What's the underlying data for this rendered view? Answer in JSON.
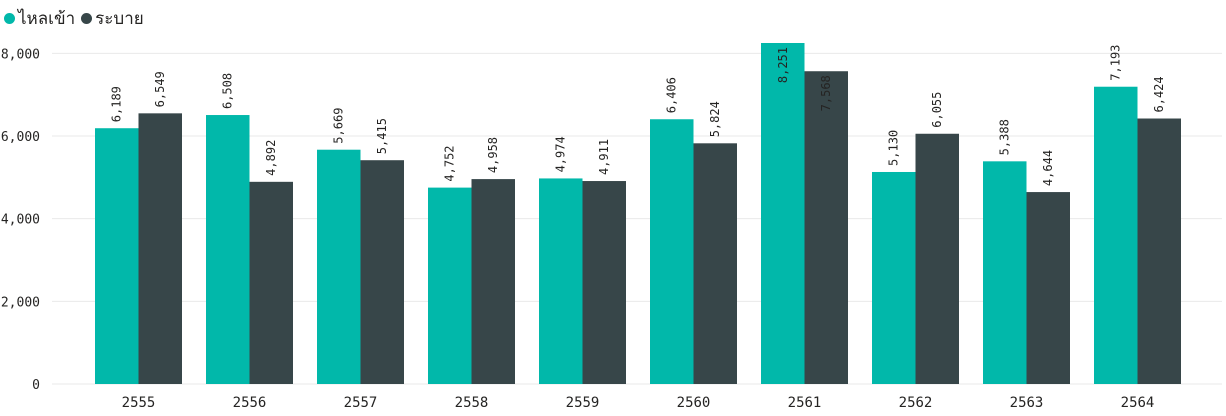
{
  "legend": {
    "inflow_label": "ไหลเข้า",
    "outflow_label": "ระบาย"
  },
  "colors": {
    "inflow": "#01b8aa",
    "outflow": "#374649",
    "grid": "#e9e9e9"
  },
  "chart_data": {
    "type": "bar",
    "categories": [
      "2555",
      "2556",
      "2557",
      "2558",
      "2559",
      "2560",
      "2561",
      "2562",
      "2563",
      "2564"
    ],
    "series": [
      {
        "name": "ไหลเข้า",
        "values": [
          6189,
          6508,
          5669,
          4752,
          4974,
          6406,
          8251,
          5130,
          5388,
          7193
        ]
      },
      {
        "name": "ระบาย",
        "values": [
          6549,
          4892,
          5415,
          4958,
          4911,
          5824,
          7568,
          6055,
          4644,
          6424
        ]
      }
    ],
    "value_labels": [
      [
        "6,189",
        "6,508",
        "5,669",
        "4,752",
        "4,974",
        "6,406",
        "8,251",
        "5,130",
        "5,388",
        "7,193"
      ],
      [
        "6,549",
        "4,892",
        "5,415",
        "4,958",
        "4,911",
        "5,824",
        "7,568",
        "6,055",
        "4,644",
        "6,424"
      ]
    ],
    "y_ticks": [
      0,
      2000,
      4000,
      6000,
      8000
    ],
    "y_tick_labels": [
      "0",
      "2,000",
      "4,000",
      "6,000",
      "8,000"
    ],
    "ylim": [
      0,
      8251
    ],
    "grid": true,
    "legend_position": "top-left",
    "title": "",
    "xlabel": "",
    "ylabel": ""
  }
}
